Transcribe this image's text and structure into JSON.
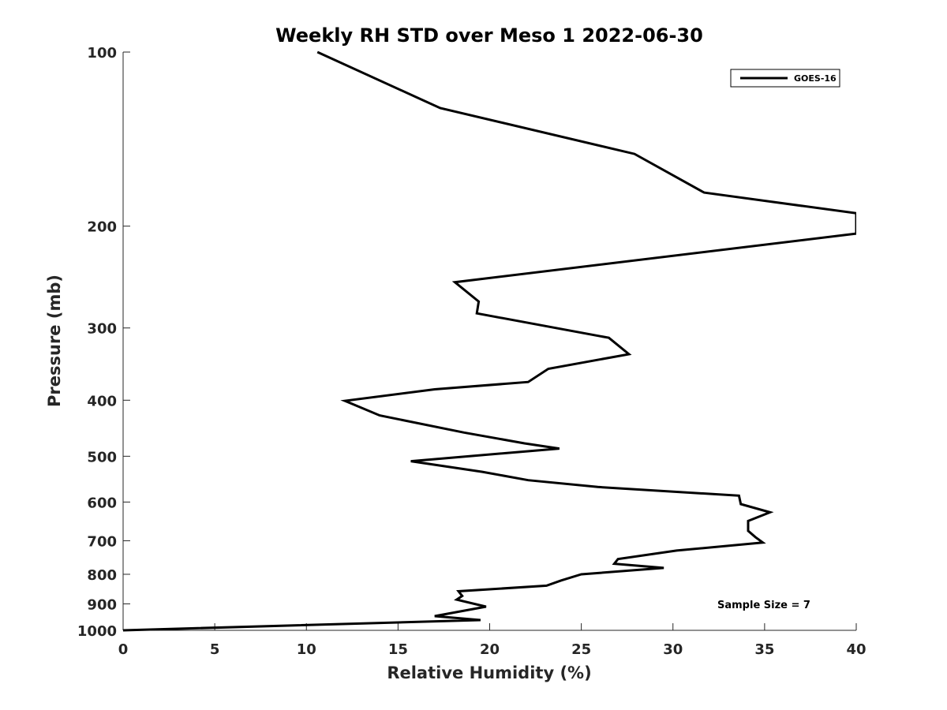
{
  "chart_data": {
    "type": "line",
    "title": "Weekly RH STD over Meso 1 2022-06-30",
    "xlabel": "Relative Humidity (%)",
    "ylabel": "Pressure (mb)",
    "xlim": [
      0,
      40
    ],
    "ylim": [
      100,
      1000
    ],
    "yscale": "log",
    "y_reversed": true,
    "grid": false,
    "x_ticks": [
      0,
      5,
      10,
      15,
      20,
      25,
      30,
      35,
      40
    ],
    "x_tick_labels": [
      "0",
      "5",
      "10",
      "15",
      "20",
      "25",
      "30",
      "35",
      "40"
    ],
    "y_ticks": [
      100,
      200,
      300,
      400,
      500,
      600,
      700,
      800,
      900,
      1000
    ],
    "y_tick_labels": [
      "100",
      "200",
      "300",
      "400",
      "500",
      "600",
      "700",
      "800",
      "900",
      "1000"
    ],
    "legend": {
      "position": "top-right",
      "entries": [
        "GOES-16"
      ]
    },
    "annotation": "Sample Size = 7",
    "series": [
      {
        "name": "GOES-16",
        "color": "#000000",
        "points": [
          [
            10.6,
            100
          ],
          [
            17.3,
            125
          ],
          [
            27.9,
            150
          ],
          [
            31.7,
            175
          ],
          [
            40.0,
            190
          ],
          [
            40.0,
            206
          ],
          [
            18.1,
            250
          ],
          [
            19.4,
            270
          ],
          [
            19.3,
            283
          ],
          [
            26.5,
            312
          ],
          [
            27.6,
            333
          ],
          [
            23.2,
            353
          ],
          [
            22.1,
            372
          ],
          [
            17.0,
            383
          ],
          [
            12.1,
            401
          ],
          [
            14.0,
            425
          ],
          [
            18.6,
            455
          ],
          [
            21.9,
            475
          ],
          [
            23.8,
            485
          ],
          [
            15.7,
            510
          ],
          [
            19.6,
            532
          ],
          [
            22.1,
            550
          ],
          [
            25.9,
            565
          ],
          [
            33.6,
            585
          ],
          [
            33.7,
            605
          ],
          [
            35.3,
            625
          ],
          [
            34.1,
            647
          ],
          [
            34.1,
            673
          ],
          [
            34.5,
            690
          ],
          [
            34.9,
            705
          ],
          [
            30.2,
            728
          ],
          [
            27.0,
            753
          ],
          [
            26.8,
            767
          ],
          [
            29.5,
            780
          ],
          [
            25.0,
            800
          ],
          [
            23.9,
            820
          ],
          [
            23.1,
            837
          ],
          [
            18.3,
            856
          ],
          [
            18.5,
            872
          ],
          [
            18.2,
            885
          ],
          [
            19.8,
            910
          ],
          [
            17.0,
            945
          ],
          [
            19.5,
            960
          ],
          [
            0,
            1000
          ]
        ]
      }
    ]
  }
}
